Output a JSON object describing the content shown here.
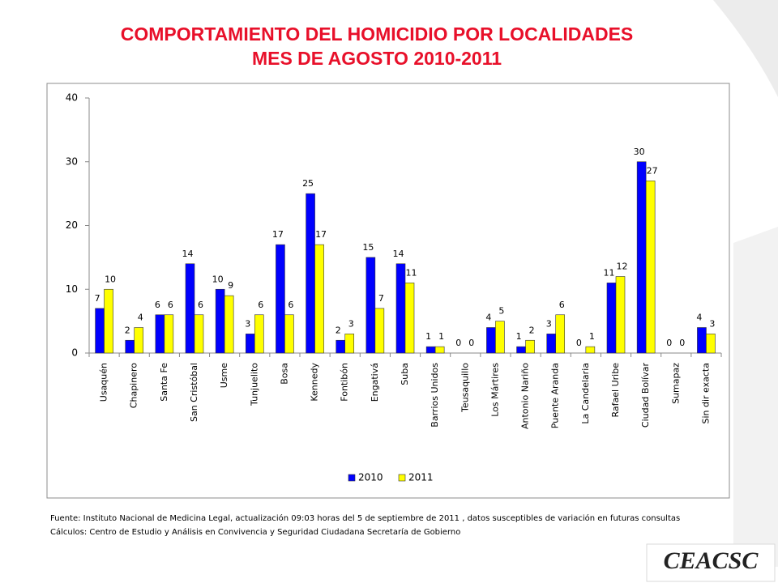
{
  "chart_data": {
    "type": "bar",
    "title": [
      "COMPORTAMIENTO DEL HOMICIDIO POR LOCALIDADES",
      "MES DE AGOSTO 2010-2011"
    ],
    "categories": [
      "Usaquén",
      "Chapinero",
      "Santa Fe",
      "San Cristóbal",
      "Usme",
      "Tunjuelito",
      "Bosa",
      "Kennedy",
      "Fontibón",
      "Engativá",
      "Suba",
      "Barrios Unidos",
      "Teusaquillo",
      "Los Mártires",
      "Antonio Nariño",
      "Puente Aranda",
      "La Candelaria",
      "Rafael Uribe",
      "Ciudad Bolívar",
      "Sumapaz",
      "Sin dir exacta"
    ],
    "series": [
      {
        "name": "2010",
        "color": "#0000ff",
        "values": [
          7,
          2,
          6,
          14,
          10,
          3,
          17,
          25,
          2,
          15,
          14,
          1,
          0,
          4,
          1,
          3,
          0,
          11,
          30,
          0,
          4
        ]
      },
      {
        "name": "2011",
        "color": "#ffff00",
        "values": [
          10,
          4,
          6,
          6,
          9,
          6,
          6,
          17,
          3,
          7,
          11,
          1,
          0,
          5,
          2,
          6,
          1,
          12,
          27,
          0,
          3
        ]
      }
    ],
    "ylim": [
      0,
      40
    ],
    "yticks": [
      0,
      10,
      20,
      30,
      40
    ],
    "grid": false,
    "legend": "bottom",
    "notes": [
      "Fuente: Instituto Nacional de Medicina Legal, actualización  09:03  horas del  5 de  septiembre de 2011 , datos susceptibles de variación en futuras consultas",
      "Cálculos:  Centro de Estudio  y Análisis en Convivencia y Seguridad Ciudadana Secretaría de Gobierno"
    ],
    "logo": "CEACSC"
  }
}
